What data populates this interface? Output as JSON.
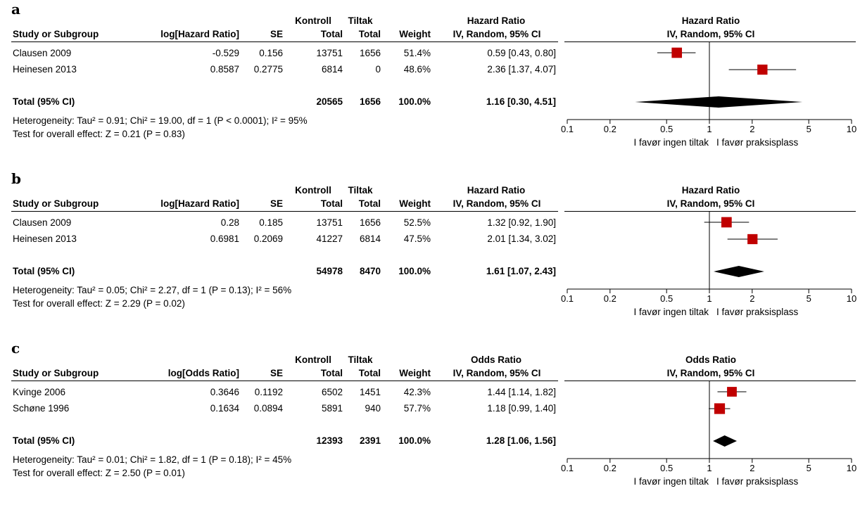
{
  "colors": {
    "study_square": "#c00000",
    "diamond": "#000000",
    "text": "#000000"
  },
  "panels": [
    {
      "letter": "a",
      "col_heads": {
        "kontroll": "Kontroll",
        "tiltak": "Tiltak",
        "ratio_top": "Hazard Ratio",
        "study": "Study or Subgroup",
        "log": "log[Hazard Ratio]",
        "se": "SE",
        "total1": "Total",
        "total2": "Total",
        "weight": "Weight",
        "method": "IV, Random, 95% CI"
      },
      "plot_heads": {
        "top": "Hazard Ratio",
        "method": "IV, Random, 95% CI"
      },
      "rows": [
        {
          "study": "Clausen 2009",
          "log": "-0.529",
          "se": "0.156",
          "n1": "13751",
          "n2": "1656",
          "weight": "51.4%",
          "ci": "0.59 [0.43, 0.80]"
        },
        {
          "study": "Heinesen 2013",
          "log": "0.8587",
          "se": "0.2775",
          "n1": "6814",
          "n2": "0",
          "weight": "48.6%",
          "ci": "2.36 [1.37, 4.07]"
        }
      ],
      "total": {
        "label": "Total (95% CI)",
        "n1": "20565",
        "n2": "1656",
        "weight": "100.0%",
        "ci": "1.16 [0.30, 4.51]"
      },
      "heterogeneity": "Heterogeneity: Tau² = 0.91; Chi² = 19.00, df = 1 (P < 0.0001); I² = 95%",
      "overall": "Test for overall effect: Z = 0.21 (P = 0.83)",
      "ticks": [
        "0.1",
        "0.2",
        "0.5",
        "1",
        "2",
        "5",
        "10"
      ],
      "favor_left": "I favør ingen tiltak",
      "favor_right": "I favør praksisplass"
    },
    {
      "letter": "b",
      "col_heads": {
        "kontroll": "Kontroll",
        "tiltak": "Tiltak",
        "ratio_top": "Hazard Ratio",
        "study": "Study or Subgroup",
        "log": "log[Hazard Ratio]",
        "se": "SE",
        "total1": "Total",
        "total2": "Total",
        "weight": "Weight",
        "method": "IV, Random, 95% CI"
      },
      "plot_heads": {
        "top": "Hazard Ratio",
        "method": "IV, Random, 95% CI"
      },
      "rows": [
        {
          "study": "Clausen 2009",
          "log": "0.28",
          "se": "0.185",
          "n1": "13751",
          "n2": "1656",
          "weight": "52.5%",
          "ci": "1.32 [0.92, 1.90]"
        },
        {
          "study": "Heinesen 2013",
          "log": "0.6981",
          "se": "0.2069",
          "n1": "41227",
          "n2": "6814",
          "weight": "47.5%",
          "ci": "2.01 [1.34, 3.02]"
        }
      ],
      "total": {
        "label": "Total (95% CI)",
        "n1": "54978",
        "n2": "8470",
        "weight": "100.0%",
        "ci": "1.61 [1.07, 2.43]"
      },
      "heterogeneity": "Heterogeneity: Tau² = 0.05; Chi² = 2.27, df = 1 (P = 0.13); I² = 56%",
      "overall": "Test for overall effect: Z = 2.29 (P = 0.02)",
      "ticks": [
        "0.1",
        "0.2",
        "0.5",
        "1",
        "2",
        "5",
        "10"
      ],
      "favor_left": "I favør ingen tiltak",
      "favor_right": "I favør praksisplass"
    },
    {
      "letter": "c",
      "col_heads": {
        "kontroll": "Kontroll",
        "tiltak": "Tiltak",
        "ratio_top": "Odds Ratio",
        "study": "Study or Subgroup",
        "log": "log[Odds Ratio]",
        "se": "SE",
        "total1": "Total",
        "total2": "Total",
        "weight": "Weight",
        "method": "IV, Random, 95% CI"
      },
      "plot_heads": {
        "top": "Odds Ratio",
        "method": "IV, Random, 95% CI"
      },
      "rows": [
        {
          "study": "Kvinge 2006",
          "log": "0.3646",
          "se": "0.1192",
          "n1": "6502",
          "n2": "1451",
          "weight": "42.3%",
          "ci": "1.44 [1.14, 1.82]"
        },
        {
          "study": "Schøne 1996",
          "log": "0.1634",
          "se": "0.0894",
          "n1": "5891",
          "n2": "940",
          "weight": "57.7%",
          "ci": "1.18 [0.99, 1.40]"
        }
      ],
      "total": {
        "label": "Total (95% CI)",
        "n1": "12393",
        "n2": "2391",
        "weight": "100.0%",
        "ci": "1.28 [1.06, 1.56]"
      },
      "heterogeneity": "Heterogeneity: Tau² = 0.01; Chi² = 1.82, df = 1 (P = 0.18); I² = 45%",
      "overall": "Test for overall effect: Z = 2.50 (P = 0.01)",
      "ticks": [
        "0.1",
        "0.2",
        "0.5",
        "1",
        "2",
        "5",
        "10"
      ],
      "favor_left": "I favør ingen tiltak",
      "favor_right": "I favør praksisplass"
    }
  ],
  "chart_data": [
    {
      "type": "forest",
      "scale": "log",
      "xlim": [
        0.1,
        10
      ],
      "null_line": 1,
      "effect_measure": "Hazard Ratio",
      "studies": [
        {
          "name": "Clausen 2009",
          "estimate": 0.59,
          "lower": 0.43,
          "upper": 0.8,
          "weight": 51.4
        },
        {
          "name": "Heinesen 2013",
          "estimate": 2.36,
          "lower": 1.37,
          "upper": 4.07,
          "weight": 48.6
        }
      ],
      "pooled": {
        "estimate": 1.16,
        "lower": 0.3,
        "upper": 4.51
      }
    },
    {
      "type": "forest",
      "scale": "log",
      "xlim": [
        0.1,
        10
      ],
      "null_line": 1,
      "effect_measure": "Hazard Ratio",
      "studies": [
        {
          "name": "Clausen 2009",
          "estimate": 1.32,
          "lower": 0.92,
          "upper": 1.9,
          "weight": 52.5
        },
        {
          "name": "Heinesen 2013",
          "estimate": 2.01,
          "lower": 1.34,
          "upper": 3.02,
          "weight": 47.5
        }
      ],
      "pooled": {
        "estimate": 1.61,
        "lower": 1.07,
        "upper": 2.43
      }
    },
    {
      "type": "forest",
      "scale": "log",
      "xlim": [
        0.1,
        10
      ],
      "null_line": 1,
      "effect_measure": "Odds Ratio",
      "studies": [
        {
          "name": "Kvinge 2006",
          "estimate": 1.44,
          "lower": 1.14,
          "upper": 1.82,
          "weight": 42.3
        },
        {
          "name": "Schøne 1996",
          "estimate": 1.18,
          "lower": 0.99,
          "upper": 1.4,
          "weight": 57.7
        }
      ],
      "pooled": {
        "estimate": 1.28,
        "lower": 1.06,
        "upper": 1.56
      }
    }
  ]
}
